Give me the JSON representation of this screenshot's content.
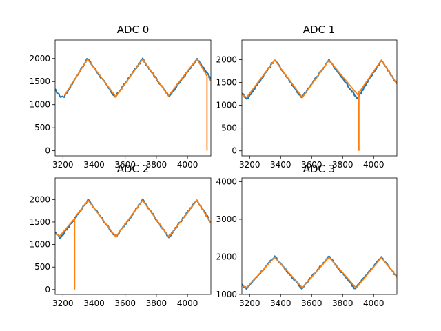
{
  "colors": {
    "blue": "#1f77b4",
    "orange": "#ff7f0e"
  },
  "chart_data": [
    {
      "type": "line",
      "title": "ADC 0",
      "xlim": [
        3150,
        4150
      ],
      "ylim": [
        -110,
        2400
      ],
      "xticks": [
        "3200",
        "3400",
        "3600",
        "3800",
        "4000"
      ],
      "yticks": [
        "0",
        "500",
        "1000",
        "1500",
        "2000"
      ],
      "xtick_values": [
        3200,
        3400,
        3600,
        3800,
        4000
      ],
      "ytick_values": [
        0,
        500,
        1000,
        1500,
        2000
      ],
      "series": [
        {
          "color": "blue",
          "noisy": true,
          "values": [
            [
              3150,
              1320
            ],
            [
              3185,
              1170
            ],
            [
              3210,
              1180
            ],
            [
              3358,
              2000
            ],
            [
              3535,
              1160
            ],
            [
              3712,
              1990
            ],
            [
              3880,
              1180
            ],
            [
              4062,
              1980
            ],
            [
              4150,
              1570
            ]
          ]
        },
        {
          "color": "orange",
          "values": [
            [
              3210,
              1200
            ],
            [
              3358,
              1985
            ],
            [
              3540,
              1170
            ],
            [
              3712,
              1985
            ],
            [
              3878,
              1190
            ],
            [
              4060,
              1990
            ],
            [
              4125,
              1620
            ],
            [
              4125,
              0
            ]
          ]
        },
        {
          "color": "orange",
          "values": [
            [
              4135,
              1600
            ],
            [
              4150,
              1510
            ]
          ]
        }
      ]
    },
    {
      "type": "line",
      "title": "ADC 1",
      "xlim": [
        3150,
        4150
      ],
      "ylim": [
        -110,
        2430
      ],
      "xticks": [
        "3200",
        "3400",
        "3600",
        "3800",
        "4000"
      ],
      "yticks": [
        "0",
        "500",
        "1000",
        "1500",
        "2000"
      ],
      "xtick_values": [
        3200,
        3400,
        3600,
        3800,
        4000
      ],
      "ytick_values": [
        0,
        500,
        1000,
        1500,
        2000
      ],
      "series": [
        {
          "color": "blue",
          "noisy": true,
          "values": [
            [
              3150,
              1260
            ],
            [
              3185,
              1140
            ],
            [
              3362,
              2000
            ],
            [
              3535,
              1160
            ],
            [
              3712,
              1990
            ],
            [
              3895,
              1150
            ],
            [
              4050,
              1990
            ],
            [
              4150,
              1470
            ]
          ]
        },
        {
          "color": "orange",
          "values": [
            [
              3150,
              1240
            ],
            [
              3180,
              1170
            ],
            [
              3362,
              1990
            ],
            [
              3540,
              1170
            ],
            [
              3712,
              1985
            ],
            [
              3905,
              1200
            ],
            [
              3905,
              1300
            ],
            [
              3905,
              0
            ]
          ]
        },
        {
          "color": "orange",
          "values": [
            [
              3910,
              1300
            ],
            [
              4050,
              1990
            ],
            [
              4150,
              1470
            ]
          ]
        }
      ]
    },
    {
      "type": "line",
      "title": "ADC 2",
      "xlim": [
        3150,
        4150
      ],
      "ylim": [
        -110,
        2480
      ],
      "xticks": [
        "3200",
        "3400",
        "3600",
        "3800",
        "4000"
      ],
      "yticks": [
        "0",
        "500",
        "1000",
        "1500",
        "2000"
      ],
      "xtick_values": [
        3200,
        3400,
        3600,
        3800,
        4000
      ],
      "ytick_values": [
        0,
        500,
        1000,
        1500,
        2000
      ],
      "series": [
        {
          "color": "blue",
          "noisy": true,
          "values": [
            [
              3150,
              1260
            ],
            [
              3185,
              1150
            ],
            [
              3362,
              1990
            ],
            [
              3540,
              1160
            ],
            [
              3712,
              1990
            ],
            [
              3880,
              1160
            ],
            [
              4060,
              1990
            ],
            [
              4150,
              1490
            ]
          ]
        },
        {
          "color": "orange",
          "values": [
            [
              3150,
              1240
            ],
            [
              3180,
              1190
            ],
            [
              3275,
              1580
            ],
            [
              3275,
              0
            ]
          ]
        },
        {
          "color": "orange",
          "values": [
            [
              3280,
              1620
            ],
            [
              3362,
              1980
            ],
            [
              3540,
              1170
            ],
            [
              3712,
              1980
            ],
            [
              3880,
              1170
            ],
            [
              4060,
              1980
            ],
            [
              4150,
              1480
            ]
          ]
        }
      ]
    },
    {
      "type": "line",
      "title": "ADC 3",
      "xlim": [
        3150,
        4150
      ],
      "ylim": [
        1000,
        4100
      ],
      "xticks": [
        "3200",
        "3400",
        "3600",
        "3800",
        "4000"
      ],
      "yticks": [
        "1000",
        "2000",
        "3000",
        "4000"
      ],
      "xtick_values": [
        3200,
        3400,
        3600,
        3800,
        4000
      ],
      "ytick_values": [
        1000,
        2000,
        3000,
        4000
      ],
      "series": [
        {
          "color": "blue",
          "noisy": true,
          "values": [
            [
              3150,
              1260
            ],
            [
              3180,
              1160
            ],
            [
              3362,
              2010
            ],
            [
              3535,
              1160
            ],
            [
              3712,
              2010
            ],
            [
              3880,
              1150
            ],
            [
              4050,
              2000
            ],
            [
              4150,
              1460
            ]
          ]
        },
        {
          "color": "orange",
          "values": [
            [
              3150,
              1240
            ],
            [
              3180,
              1180
            ],
            [
              3362,
              1990
            ],
            [
              3540,
              1180
            ],
            [
              3712,
              1990
            ],
            [
              3888,
              1170
            ],
            [
              4050,
              1980
            ],
            [
              4150,
              1470
            ]
          ]
        }
      ]
    }
  ]
}
